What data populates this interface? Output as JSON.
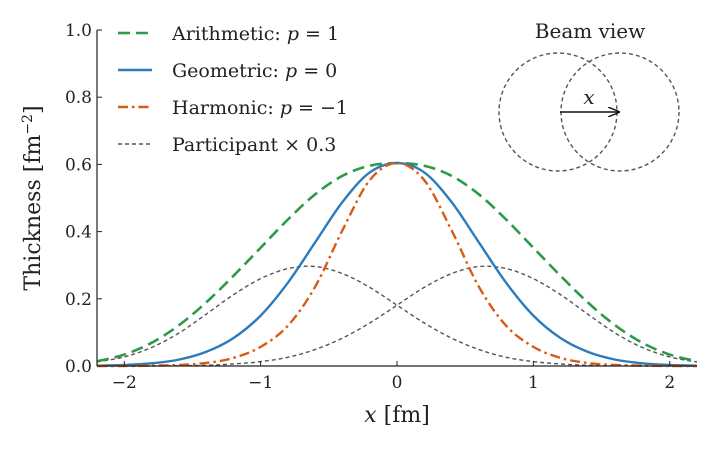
{
  "chart_data": {
    "type": "line",
    "xlabel": "x [fm]",
    "ylabel": "Thickness [fm⁻²]",
    "xlim": [
      -2.2,
      2.2
    ],
    "ylim": [
      0.0,
      1.0
    ],
    "x_ticks": [
      -2,
      -1,
      0,
      1,
      2
    ],
    "x_tick_labels": [
      "−2",
      "−1",
      "0",
      "1",
      "2"
    ],
    "y_ticks": [
      0.0,
      0.2,
      0.4,
      0.6,
      0.8,
      1.0
    ],
    "y_tick_labels": [
      "0.0",
      "0.2",
      "0.4",
      "0.6",
      "0.8",
      "1.0"
    ],
    "grid": false,
    "legend_position": "top-left",
    "x": [
      -2.2,
      -2.0,
      -1.8,
      -1.6,
      -1.4,
      -1.2,
      -1.0,
      -0.8,
      -0.6,
      -0.4,
      -0.2,
      0.0,
      0.2,
      0.4,
      0.6,
      0.8,
      1.0,
      1.2,
      1.4,
      1.6,
      1.8,
      2.0,
      2.2
    ],
    "series": [
      {
        "name": "Arithmetic: p = 1",
        "color": "#2e9a48",
        "dash": "long-dash",
        "values": [
          0.014,
          0.034,
          0.069,
          0.121,
          0.189,
          0.268,
          0.352,
          0.436,
          0.511,
          0.566,
          0.596,
          0.604,
          0.596,
          0.566,
          0.511,
          0.436,
          0.352,
          0.268,
          0.189,
          0.121,
          0.069,
          0.034,
          0.014
        ]
      },
      {
        "name": "Geometric: p = 0",
        "color": "#2b7bbd",
        "dash": "solid",
        "values": [
          0.001,
          0.003,
          0.008,
          0.019,
          0.042,
          0.083,
          0.15,
          0.248,
          0.368,
          0.488,
          0.576,
          0.604,
          0.576,
          0.488,
          0.368,
          0.248,
          0.15,
          0.083,
          0.042,
          0.019,
          0.008,
          0.003,
          0.001
        ]
      },
      {
        "name": "Harmonic: p = −1",
        "color": "#db5a13",
        "dash": "dash-dot",
        "values": [
          0.0,
          0.0,
          0.001,
          0.003,
          0.009,
          0.024,
          0.057,
          0.12,
          0.236,
          0.404,
          0.553,
          0.604,
          0.553,
          0.404,
          0.236,
          0.12,
          0.057,
          0.024,
          0.009,
          0.003,
          0.001,
          0.0,
          0.0
        ]
      },
      {
        "name": "Participant × 0.3 (left)",
        "color": "#555555",
        "dash": "short-dash",
        "values": [
          0.012,
          0.027,
          0.055,
          0.098,
          0.154,
          0.212,
          0.26,
          0.29,
          0.296,
          0.275,
          0.234,
          0.181,
          0.128,
          0.083,
          0.049,
          0.026,
          0.013,
          0.006,
          0.002,
          0.001,
          0.0,
          0.0,
          0.0
        ]
      },
      {
        "name": "Participant × 0.3 (right)",
        "color": "#555555",
        "dash": "short-dash",
        "values": [
          0.0,
          0.0,
          0.0,
          0.001,
          0.002,
          0.006,
          0.013,
          0.026,
          0.049,
          0.083,
          0.128,
          0.181,
          0.234,
          0.275,
          0.296,
          0.29,
          0.26,
          0.212,
          0.154,
          0.098,
          0.055,
          0.027,
          0.012
        ]
      }
    ],
    "legend": [
      {
        "text": "Arithmetic: ",
        "var": "p",
        "suffix": " = 1",
        "color": "#2e9a48",
        "dash": "long-dash"
      },
      {
        "text": "Geometric: ",
        "var": "p",
        "suffix": " = 0",
        "color": "#2b7bbd",
        "dash": "solid"
      },
      {
        "text": "Harmonic: ",
        "var": "p",
        "suffix": " = −1",
        "color": "#db5a13",
        "dash": "dash-dot"
      },
      {
        "text": "Participant × 0.3",
        "var": "",
        "suffix": "",
        "color": "#555555",
        "dash": "short-dash"
      }
    ],
    "inset": {
      "title": "Beam view",
      "arrow_label": "x",
      "circle_style": "dashed",
      "circle_color": "#555555"
    }
  }
}
